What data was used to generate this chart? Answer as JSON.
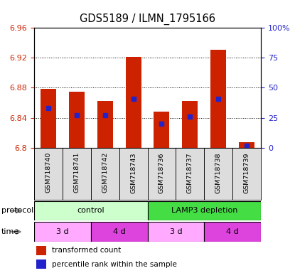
{
  "title": "GDS5189 / ILMN_1795166",
  "samples": [
    "GSM718740",
    "GSM718741",
    "GSM718742",
    "GSM718743",
    "GSM718736",
    "GSM718737",
    "GSM718738",
    "GSM718739"
  ],
  "bar_bottoms": [
    6.8,
    6.8,
    6.8,
    6.8,
    6.8,
    6.8,
    6.8,
    6.8
  ],
  "bar_tops": [
    6.878,
    6.875,
    6.862,
    6.921,
    6.848,
    6.862,
    6.93,
    6.807
  ],
  "blue_marker_y": [
    6.853,
    6.843,
    6.843,
    6.865,
    6.832,
    6.841,
    6.865,
    6.803
  ],
  "ylim": [
    6.8,
    6.96
  ],
  "y_left_ticks": [
    6.8,
    6.84,
    6.88,
    6.92,
    6.96
  ],
  "y_left_labels": [
    "6.8",
    "6.84",
    "6.88",
    "6.92",
    "6.96"
  ],
  "y_right_ticks": [
    0,
    25,
    50,
    75,
    100
  ],
  "y_right_labels": [
    "0",
    "25",
    "50",
    "75",
    "100%"
  ],
  "ytick_dotted": [
    6.84,
    6.88,
    6.92
  ],
  "bar_color": "#cc2200",
  "blue_color": "#2222cc",
  "protocol_groups": [
    {
      "label": "control",
      "start": 0,
      "end": 4,
      "color": "#ccffcc"
    },
    {
      "label": "LAMP3 depletion",
      "start": 4,
      "end": 8,
      "color": "#44dd44"
    }
  ],
  "time_groups": [
    {
      "label": "3 d",
      "start": 0,
      "end": 2,
      "color": "#ffaaff"
    },
    {
      "label": "4 d",
      "start": 2,
      "end": 4,
      "color": "#dd44dd"
    },
    {
      "label": "3 d",
      "start": 4,
      "end": 6,
      "color": "#ffaaff"
    },
    {
      "label": "4 d",
      "start": 6,
      "end": 8,
      "color": "#dd44dd"
    }
  ],
  "legend_red_label": "transformed count",
  "legend_blue_label": "percentile rank within the sample",
  "left_axis_color": "#cc2200",
  "right_axis_color": "#2222cc",
  "bar_width": 0.55
}
